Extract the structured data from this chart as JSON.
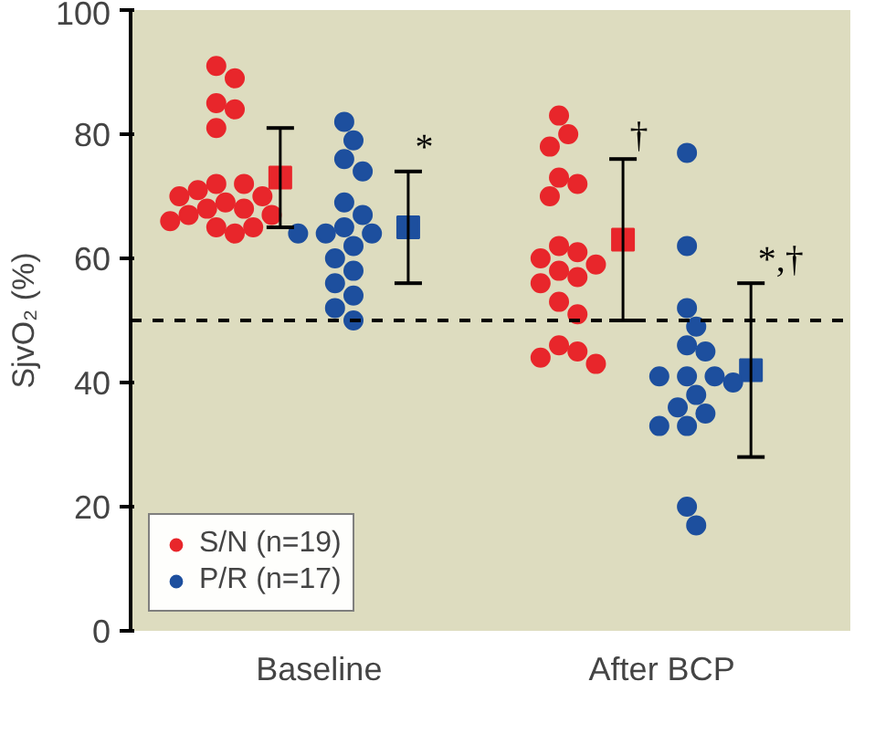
{
  "chart_data": {
    "type": "scatter",
    "ylabel": "SjvO₂ (%)",
    "categories": [
      "Baseline",
      "After BCP"
    ],
    "ylim": [
      0,
      100
    ],
    "yticks": [
      0,
      20,
      40,
      60,
      80,
      100
    ],
    "grid": false,
    "legend": "bottom left",
    "series": [
      {
        "name": "S/N (n=19)",
        "color": "#e8262b",
        "marker": "circle",
        "x": [
          "Baseline",
          "Baseline",
          "Baseline",
          "Baseline",
          "Baseline",
          "Baseline",
          "Baseline",
          "Baseline",
          "Baseline",
          "Baseline",
          "Baseline",
          "Baseline",
          "Baseline",
          "Baseline",
          "Baseline",
          "Baseline",
          "Baseline",
          "Baseline",
          "Baseline",
          "After BCP",
          "After BCP",
          "After BCP",
          "After BCP",
          "After BCP",
          "After BCP",
          "After BCP",
          "After BCP",
          "After BCP",
          "After BCP",
          "After BCP",
          "After BCP",
          "After BCP",
          "After BCP",
          "After BCP",
          "After BCP",
          "After BCP",
          "After BCP",
          "After BCP"
        ],
        "values": [
          91,
          89,
          85,
          84,
          81,
          72,
          72,
          71,
          70,
          70,
          69,
          68,
          68,
          67,
          67,
          66,
          65,
          65,
          64,
          83,
          80,
          78,
          73,
          72,
          70,
          62,
          61,
          60,
          59,
          58,
          57,
          56,
          53,
          51,
          46,
          45,
          44,
          43
        ]
      },
      {
        "color": "#e8262b",
        "marker": "square",
        "values": [
          73,
          63
        ],
        "errors": [
          [
            65,
            81
          ],
          [
            50,
            76
          ]
        ],
        "value_labels": [
          null,
          "†"
        ]
      },
      {
        "name": "P/R (n=17)",
        "color": "#1d4f9e",
        "marker": "circle",
        "x": [
          "Baseline",
          "Baseline",
          "Baseline",
          "Baseline",
          "Baseline",
          "Baseline",
          "Baseline",
          "Baseline",
          "Baseline",
          "Baseline",
          "Baseline",
          "Baseline",
          "Baseline",
          "Baseline",
          "Baseline",
          "Baseline",
          "Baseline",
          "After BCP",
          "After BCP",
          "After BCP",
          "After BCP",
          "After BCP",
          "After BCP",
          "After BCP",
          "After BCP",
          "After BCP",
          "After BCP",
          "After BCP",
          "After BCP",
          "After BCP",
          "After BCP",
          "After BCP",
          "After BCP",
          "After BCP"
        ],
        "values": [
          82,
          79,
          76,
          74,
          69,
          67,
          65,
          64,
          64,
          64,
          62,
          60,
          58,
          56,
          54,
          52,
          50,
          77,
          62,
          52,
          49,
          46,
          45,
          41,
          41,
          41,
          40,
          38,
          36,
          35,
          33,
          33,
          20,
          17
        ]
      },
      {
        "color": "#1d4f9e",
        "marker": "square",
        "values": [
          65,
          42
        ],
        "errors": [
          [
            56,
            74
          ],
          [
            28,
            56
          ]
        ],
        "value_labels": [
          "*",
          "*,†"
        ]
      }
    ],
    "ref_lines": [
      {
        "axis": "y",
        "value": 50,
        "color": "#000000",
        "line_style": "dashed"
      }
    ]
  }
}
